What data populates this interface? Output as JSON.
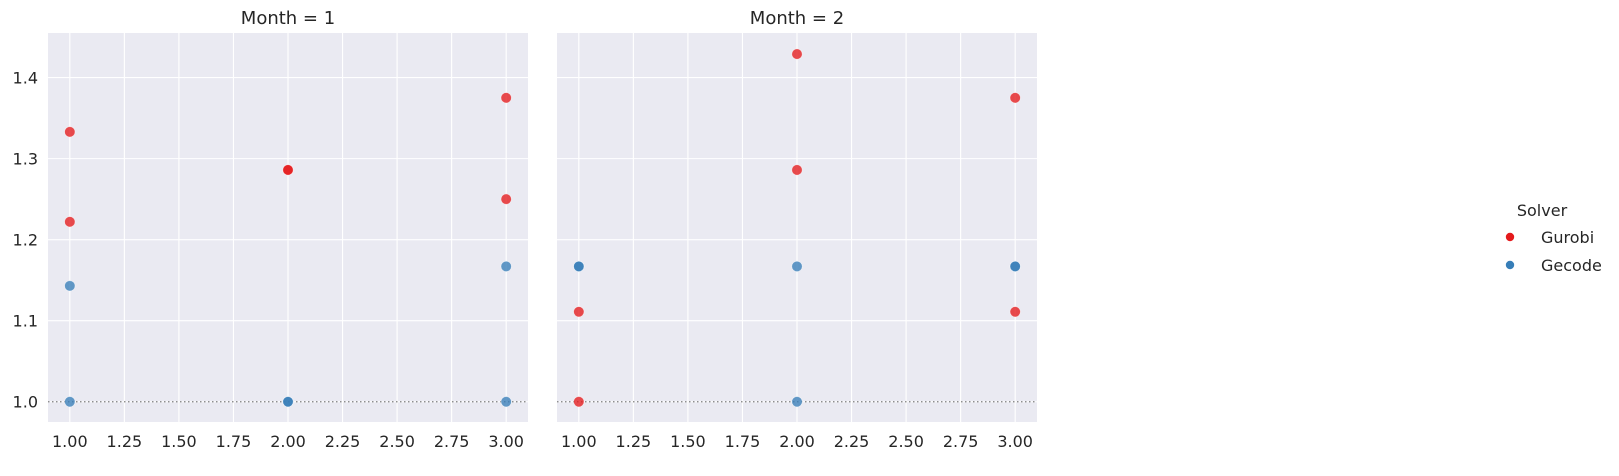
{
  "chart_data": {
    "type": "scatter",
    "legend": {
      "title": "Solver",
      "placement": "right",
      "entries": [
        {
          "name": "Gurobi",
          "color": "#e41a1c"
        },
        {
          "name": "Gecode",
          "color": "#377eb8"
        }
      ]
    },
    "reference_line": {
      "y": 1.0,
      "style": "dotted",
      "color": "#808080"
    },
    "xlim": [
      0.9,
      3.1
    ],
    "ylim": [
      0.975,
      1.455
    ],
    "x_ticks": [
      1.0,
      1.25,
      1.5,
      1.75,
      2.0,
      2.25,
      2.5,
      2.75,
      3.0
    ],
    "x_tick_labels": [
      "1.00",
      "1.25",
      "1.50",
      "1.75",
      "2.00",
      "2.25",
      "2.50",
      "2.75",
      "3.00"
    ],
    "y_ticks": [
      1.0,
      1.1,
      1.2,
      1.3,
      1.4
    ],
    "y_tick_labels": [
      "1.0",
      "1.1",
      "1.2",
      "1.3",
      "1.4"
    ],
    "grid": true,
    "panels": [
      {
        "title": "Month = 1",
        "series": [
          {
            "name": "Gurobi",
            "points": [
              [
                1.0,
                1.333
              ],
              [
                1.0,
                1.222
              ],
              [
                2.0,
                1.286
              ],
              [
                2.0,
                1.286
              ],
              [
                3.0,
                1.375
              ],
              [
                3.0,
                1.25
              ]
            ]
          },
          {
            "name": "Gecode",
            "points": [
              [
                1.0,
                1.143
              ],
              [
                1.0,
                1.0
              ],
              [
                2.0,
                1.0
              ],
              [
                2.0,
                1.0
              ],
              [
                3.0,
                1.167
              ],
              [
                3.0,
                1.0
              ]
            ]
          }
        ]
      },
      {
        "title": "Month = 2",
        "series": [
          {
            "name": "Gurobi",
            "points": [
              [
                1.0,
                1.111
              ],
              [
                1.0,
                1.0
              ],
              [
                2.0,
                1.429
              ],
              [
                2.0,
                1.286
              ],
              [
                3.0,
                1.375
              ],
              [
                3.0,
                1.111
              ]
            ]
          },
          {
            "name": "Gecode",
            "points": [
              [
                1.0,
                1.167
              ],
              [
                1.0,
                1.167
              ],
              [
                2.0,
                1.167
              ],
              [
                2.0,
                1.0
              ],
              [
                3.0,
                1.167
              ],
              [
                3.0,
                1.167
              ]
            ]
          }
        ]
      }
    ]
  }
}
